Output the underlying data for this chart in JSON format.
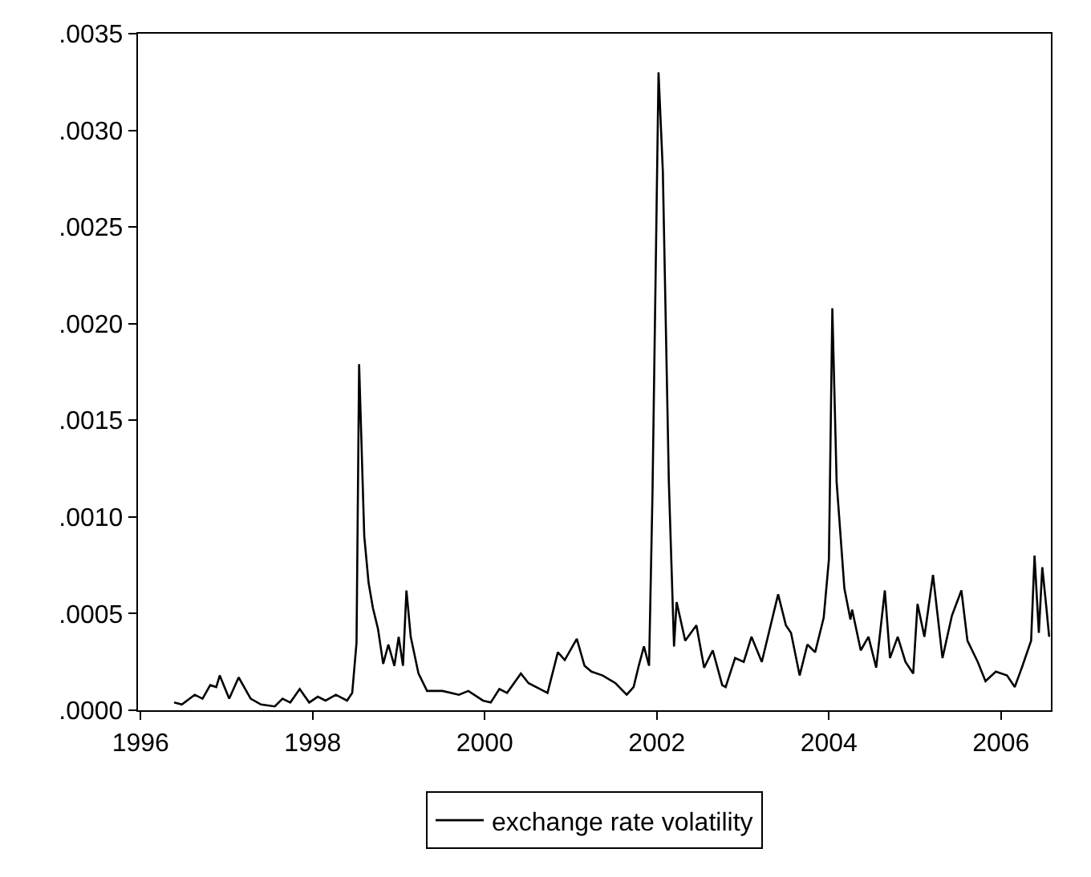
{
  "chart_data": {
    "type": "line",
    "legend": "bottom",
    "marker": "none",
    "line_style": "solid",
    "xlim": [
      1995.97,
      2006.58
    ],
    "xticks": [
      1996,
      1998,
      2000,
      2002,
      2004,
      2006
    ],
    "ylim": [
      0,
      0.0035
    ],
    "yticks": [
      {
        "value": 0,
        "label": ".0000"
      },
      {
        "value": 0.0005,
        "label": ".0005"
      },
      {
        "value": 0.001,
        "label": ".0010"
      },
      {
        "value": 0.0015,
        "label": ".0015"
      },
      {
        "value": 0.002,
        "label": ".0020"
      },
      {
        "value": 0.0025,
        "label": ".0025"
      },
      {
        "value": 0.003,
        "label": ".0030"
      },
      {
        "value": 0.0035,
        "label": ".0035"
      }
    ],
    "x": [
      1996.39,
      1996.48,
      1996.57,
      1996.63,
      1996.72,
      1996.81,
      1996.88,
      1996.92,
      1997.03,
      1997.14,
      1997.28,
      1997.4,
      1997.56,
      1997.65,
      1997.74,
      1997.85,
      1997.96,
      1998.06,
      1998.15,
      1998.27,
      1998.4,
      1998.46,
      1998.51,
      1998.54,
      1998.6,
      1998.65,
      1998.7,
      1998.76,
      1998.82,
      1998.88,
      1998.95,
      1999.0,
      1999.05,
      1999.09,
      1999.14,
      1999.23,
      1999.33,
      1999.51,
      1999.7,
      1999.81,
      1999.98,
      2000.07,
      2000.17,
      2000.26,
      2000.42,
      2000.51,
      2000.73,
      2000.85,
      2000.93,
      2001.07,
      2001.16,
      2001.24,
      2001.37,
      2001.52,
      2001.65,
      2001.73,
      2001.79,
      2001.85,
      2001.91,
      2001.95,
      2002.02,
      2002.07,
      2002.14,
      2002.2,
      2002.23,
      2002.33,
      2002.46,
      2002.55,
      2002.65,
      2002.76,
      2002.8,
      2002.91,
      2003.01,
      2003.1,
      2003.22,
      2003.41,
      2003.5,
      2003.56,
      2003.66,
      2003.75,
      2003.84,
      2003.94,
      2004.0,
      2004.04,
      2004.09,
      2004.18,
      2004.25,
      2004.27,
      2004.37,
      2004.46,
      2004.55,
      2004.65,
      2004.71,
      2004.8,
      2004.89,
      2004.98,
      2005.03,
      2005.11,
      2005.21,
      2005.32,
      2005.43,
      2005.54,
      2005.61,
      2005.73,
      2005.82,
      2005.94,
      2006.07,
      2006.16,
      2006.25,
      2006.35,
      2006.39,
      2006.44,
      2006.48,
      2006.53,
      2006.56
    ],
    "series": [
      {
        "name": "exchange rate volatility",
        "color": "#000000",
        "values": [
          4e-05,
          3e-05,
          6e-05,
          8e-05,
          6e-05,
          0.00013,
          0.00012,
          0.00018,
          6e-05,
          0.00017,
          6e-05,
          3e-05,
          2e-05,
          6e-05,
          4e-05,
          0.00011,
          4e-05,
          7e-05,
          5e-05,
          8e-05,
          5e-05,
          9e-05,
          0.00035,
          0.00179,
          0.0009,
          0.00066,
          0.00053,
          0.00042,
          0.00024,
          0.00034,
          0.00023,
          0.00038,
          0.00023,
          0.00062,
          0.00038,
          0.00019,
          0.0001,
          0.0001,
          8e-05,
          0.0001,
          5e-05,
          4e-05,
          0.00011,
          9e-05,
          0.00019,
          0.00014,
          9e-05,
          0.0003,
          0.00026,
          0.00037,
          0.00023,
          0.0002,
          0.00018,
          0.00014,
          8e-05,
          0.00012,
          0.00023,
          0.00033,
          0.00023,
          0.00113,
          0.0033,
          0.00279,
          0.00118,
          0.00033,
          0.00056,
          0.00036,
          0.00044,
          0.00022,
          0.00031,
          0.00013,
          0.00012,
          0.00027,
          0.00025,
          0.00038,
          0.00025,
          0.0006,
          0.00044,
          0.0004,
          0.00018,
          0.00034,
          0.0003,
          0.00048,
          0.00078,
          0.00208,
          0.00118,
          0.00063,
          0.00047,
          0.00052,
          0.00031,
          0.00038,
          0.00022,
          0.00062,
          0.00027,
          0.00038,
          0.00025,
          0.00019,
          0.00055,
          0.00038,
          0.0007,
          0.00027,
          0.00049,
          0.00062,
          0.00036,
          0.00025,
          0.00015,
          0.0002,
          0.00018,
          0.00012,
          0.00023,
          0.00036,
          0.0008,
          0.0004,
          0.00074,
          0.00052,
          0.00038
        ]
      }
    ]
  }
}
